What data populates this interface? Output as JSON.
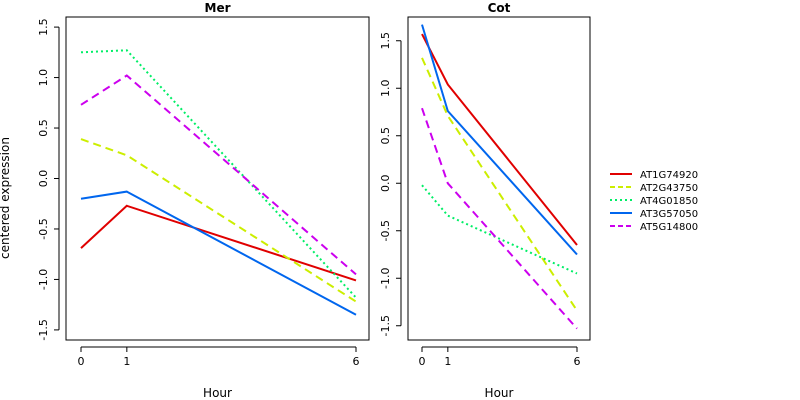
{
  "chart_data": [
    {
      "type": "line",
      "title": "Mer",
      "xlabel": "Hour",
      "ylabel": "centered expression",
      "x": [
        "0",
        "1",
        "6"
      ],
      "ylim": [
        -1.6,
        1.6
      ],
      "yticks": [
        "-1.5",
        "-1.0",
        "-0.5",
        "0.0",
        "0.5",
        "1.0",
        "1.5"
      ],
      "series": [
        {
          "name": "AT1G74920",
          "color": "#e00000",
          "dash": "solid",
          "values": [
            -0.69,
            -0.27,
            -1.01
          ]
        },
        {
          "name": "AT2G43750",
          "color": "#ccee00",
          "dash": "dashed",
          "values": [
            0.39,
            0.23,
            -1.22
          ]
        },
        {
          "name": "AT4G01850",
          "color": "#00ee66",
          "dash": "dotted",
          "values": [
            1.25,
            1.27,
            -1.18
          ]
        },
        {
          "name": "AT3G57050",
          "color": "#0066ee",
          "dash": "solid",
          "values": [
            -0.2,
            -0.13,
            -1.35
          ]
        },
        {
          "name": "AT5G14800",
          "color": "#cc00ee",
          "dash": "dashed",
          "values": [
            0.73,
            1.02,
            -0.95
          ]
        }
      ]
    },
    {
      "type": "line",
      "title": "Cot",
      "xlabel": "Hour",
      "ylabel": "",
      "x": [
        "0",
        "1",
        "6"
      ],
      "ylim": [
        -1.65,
        1.75
      ],
      "yticks": [
        "-1.5",
        "-1.0",
        "-0.5",
        "0.0",
        "0.5",
        "1.0",
        "1.5"
      ],
      "series": [
        {
          "name": "AT1G74920",
          "color": "#e00000",
          "dash": "solid",
          "values": [
            1.57,
            1.04,
            -0.65
          ]
        },
        {
          "name": "AT2G43750",
          "color": "#ccee00",
          "dash": "dashed",
          "values": [
            1.32,
            0.71,
            -1.34
          ]
        },
        {
          "name": "AT4G01850",
          "color": "#00ee66",
          "dash": "dotted",
          "values": [
            -0.02,
            -0.34,
            -0.95
          ]
        },
        {
          "name": "AT3G57050",
          "color": "#0066ee",
          "dash": "solid",
          "values": [
            1.67,
            0.76,
            -0.75
          ]
        },
        {
          "name": "AT5G14800",
          "color": "#cc00ee",
          "dash": "dashed",
          "values": [
            0.79,
            0.0,
            -1.53
          ]
        }
      ]
    }
  ],
  "legend": {
    "position": "right",
    "items": [
      "AT1G74920",
      "AT2G43750",
      "AT4G01850",
      "AT3G57050",
      "AT5G14800"
    ]
  }
}
